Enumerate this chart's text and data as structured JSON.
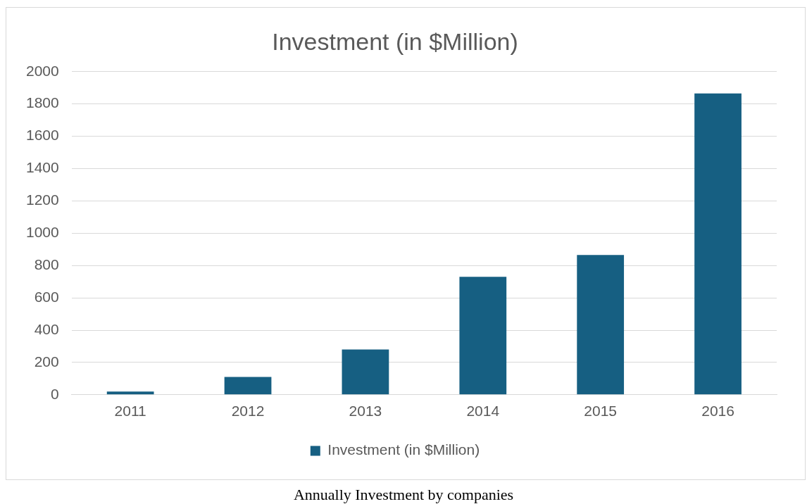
{
  "chart_data": {
    "type": "bar",
    "title": "Investment (in $Million)",
    "categories": [
      "2011",
      "2012",
      "2013",
      "2014",
      "2015",
      "2016"
    ],
    "series": [
      {
        "name": "Investment (in $Million)",
        "color": "#165f82",
        "values": [
          20,
          110,
          280,
          730,
          865,
          1865
        ]
      }
    ],
    "ylim": [
      0,
      2000
    ],
    "yticks": [
      0,
      200,
      400,
      600,
      800,
      1000,
      1200,
      1400,
      1600,
      1800,
      2000
    ],
    "grid": "y",
    "legend": "bottom",
    "annotations": [
      "Annually Investment by companies"
    ]
  }
}
